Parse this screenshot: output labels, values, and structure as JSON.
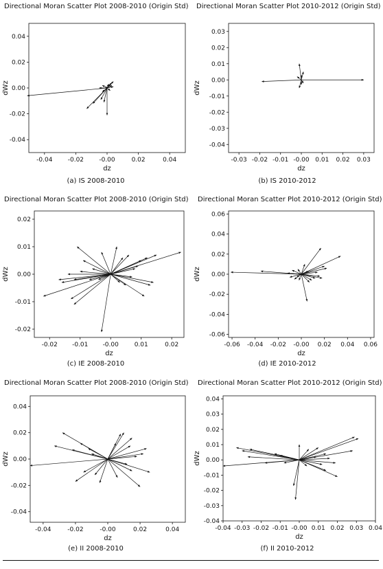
{
  "chart_data": [
    {
      "type": "scatter",
      "title": "Directional Moran Scatter Plot 2008-2010 (Origin Std)",
      "caption": "(a) IS 2008-2010",
      "xlabel": "dz",
      "ylabel": "dWz",
      "xlim": [
        -0.05,
        0.05
      ],
      "ylim": [
        -0.05,
        0.05
      ],
      "xticks": [
        "-0.04",
        "-0.02",
        "-0.00",
        "0.02",
        "0.04"
      ],
      "yticks": [
        "0.04",
        "0.02",
        "0.00",
        "-0.02",
        "-0.04"
      ],
      "xtick_values": [
        -0.04,
        -0.02,
        0,
        0.02,
        0.04
      ],
      "ytick_values": [
        0.04,
        0.02,
        0,
        -0.02,
        -0.04
      ],
      "vectors": [
        [
          -0.051,
          -0.006
        ],
        [
          -0.013,
          -0.016
        ],
        [
          -0.009,
          -0.012
        ],
        [
          -0.004,
          -0.009
        ],
        [
          -0.002,
          -0.011
        ],
        [
          0.0,
          -0.021
        ],
        [
          -0.005,
          0.0
        ],
        [
          -0.003,
          0.002
        ],
        [
          -0.003,
          -0.003
        ],
        [
          0.002,
          0.003
        ],
        [
          0.003,
          0.004
        ],
        [
          0.004,
          0.005
        ],
        [
          0.003,
          0.002
        ],
        [
          0.002,
          -0.002
        ],
        [
          -0.001,
          0.001
        ],
        [
          0.001,
          0.003
        ],
        [
          0.004,
          0.001
        ]
      ]
    },
    {
      "type": "scatter",
      "title": "Directional Moran Scatter Plot 2010-2012 (Origin Std)",
      "caption": "(b) IS 2010-2012",
      "xlabel": "dz",
      "ylabel": "dWz",
      "xlim": [
        -0.035,
        0.035
      ],
      "ylim": [
        -0.045,
        0.035
      ],
      "xticks": [
        "-0.03",
        "-0.02",
        "-0.01",
        "-0.00",
        "0.01",
        "0.02",
        "0.03"
      ],
      "yticks": [
        "0.03",
        "0.02",
        "0.01",
        "0.00",
        "-0.01",
        "-0.02",
        "-0.03",
        "-0.04"
      ],
      "xtick_values": [
        -0.03,
        -0.02,
        -0.01,
        0,
        0.01,
        0.02,
        0.03
      ],
      "ytick_values": [
        0.03,
        0.02,
        0.01,
        0,
        -0.01,
        -0.02,
        -0.03,
        -0.04
      ],
      "vectors": [
        [
          -0.019,
          -0.001
        ],
        [
          0.03,
          0.0
        ],
        [
          -0.001,
          0.01
        ],
        [
          0.001,
          0.005
        ],
        [
          -0.001,
          -0.005
        ],
        [
          0.0,
          -0.003
        ],
        [
          -0.002,
          0.002
        ],
        [
          0.001,
          -0.002
        ],
        [
          0.0,
          0.003
        ]
      ]
    },
    {
      "type": "scatter",
      "title": "Directional Moran Scatter Plot 2008-2010 (Origin Std)",
      "caption": "(c) IE 2008-2010",
      "xlabel": "dz",
      "ylabel": "dWz",
      "xlim": [
        -0.025,
        0.024
      ],
      "ylim": [
        -0.023,
        0.023
      ],
      "xticks": [
        "-0.02",
        "-0.01",
        "-0.00",
        "0.01",
        "0.02"
      ],
      "yticks": [
        "0.02",
        "0.01",
        "0.00",
        "-0.01",
        "-0.02"
      ],
      "xtick_values": [
        -0.02,
        -0.01,
        0,
        0.01,
        0.02
      ],
      "ytick_values": [
        0.02,
        0.01,
        0,
        -0.01,
        -0.02
      ],
      "vectors": [
        [
          -0.022,
          -0.008
        ],
        [
          -0.012,
          -0.011
        ],
        [
          -0.013,
          -0.009
        ],
        [
          -0.017,
          -0.002
        ],
        [
          -0.016,
          -0.003
        ],
        [
          -0.012,
          -0.002
        ],
        [
          -0.014,
          0.0
        ],
        [
          -0.01,
          0.001
        ],
        [
          -0.011,
          0.01
        ],
        [
          -0.009,
          0.005
        ],
        [
          -0.003,
          -0.021
        ],
        [
          -0.003,
          0.008
        ],
        [
          0.002,
          0.01
        ],
        [
          0.004,
          0.006
        ],
        [
          0.006,
          0.007
        ],
        [
          0.01,
          0.005
        ],
        [
          0.012,
          0.006
        ],
        [
          0.015,
          0.007
        ],
        [
          0.023,
          0.008
        ],
        [
          0.013,
          -0.004
        ],
        [
          0.014,
          -0.003
        ],
        [
          0.011,
          -0.008
        ],
        [
          0.008,
          0.002
        ],
        [
          0.007,
          -0.001
        ],
        [
          -0.006,
          0.002
        ],
        [
          -0.004,
          -0.002
        ],
        [
          0.005,
          -0.004
        ],
        [
          0.009,
          0.003
        ],
        [
          0.003,
          -0.003
        ],
        [
          -0.007,
          -0.002
        ]
      ]
    },
    {
      "type": "scatter",
      "title": "Directional Moran Scatter Plot 2010-2012 (Origin Std)",
      "caption": "(d) IE 2010-2012",
      "xlabel": "dz",
      "ylabel": "dWz",
      "xlim": [
        -0.063,
        0.063
      ],
      "ylim": [
        -0.063,
        0.063
      ],
      "xticks": [
        "-0.06",
        "-0.04",
        "-0.02",
        "-0.00",
        "0.02",
        "0.04",
        "0.06"
      ],
      "yticks": [
        "0.06",
        "0.04",
        "0.02",
        "0.00",
        "-0.02",
        "-0.04",
        "-0.06"
      ],
      "xtick_values": [
        -0.06,
        -0.04,
        -0.02,
        0,
        0.02,
        0.04,
        0.06
      ],
      "ytick_values": [
        0.06,
        0.04,
        0.02,
        0,
        -0.02,
        -0.04,
        -0.06
      ],
      "vectors": [
        [
          -0.061,
          0.002
        ],
        [
          -0.035,
          0.003
        ],
        [
          0.017,
          0.026
        ],
        [
          0.034,
          0.018
        ],
        [
          0.005,
          -0.027
        ],
        [
          0.02,
          0.008
        ],
        [
          0.018,
          -0.004
        ],
        [
          0.022,
          0.006
        ],
        [
          -0.01,
          -0.003
        ],
        [
          -0.006,
          -0.005
        ],
        [
          -0.008,
          0.004
        ],
        [
          0.009,
          -0.006
        ],
        [
          0.012,
          -0.004
        ],
        [
          0.014,
          0.002
        ],
        [
          -0.003,
          0.005
        ],
        [
          0.006,
          0.003
        ],
        [
          -0.004,
          -0.003
        ],
        [
          0.003,
          0.01
        ],
        [
          -0.012,
          0.001
        ],
        [
          0.016,
          -0.002
        ],
        [
          0.007,
          -0.008
        ],
        [
          -0.002,
          -0.006
        ]
      ]
    },
    {
      "type": "scatter",
      "title": "Directional Moran Scatter Plot 2008-2010 (Origin Std)",
      "caption": "(e) II 2008-2010",
      "xlabel": "dz",
      "ylabel": "dWz",
      "xlim": [
        -0.048,
        0.048
      ],
      "ylim": [
        -0.048,
        0.048
      ],
      "xticks": [
        "-0.04",
        "-0.02",
        "-0.00",
        "0.02",
        "0.04"
      ],
      "yticks": [
        "0.04",
        "0.02",
        "0.00",
        "-0.02",
        "-0.04"
      ],
      "xtick_values": [
        -0.04,
        -0.02,
        0,
        0.02,
        0.04
      ],
      "ytick_values": [
        0.04,
        0.02,
        0,
        -0.02,
        -0.04
      ],
      "vectors": [
        [
          -0.048,
          -0.005
        ],
        [
          -0.028,
          0.02
        ],
        [
          -0.033,
          0.01
        ],
        [
          -0.02,
          -0.017
        ],
        [
          -0.015,
          -0.01
        ],
        [
          -0.017,
          0.012
        ],
        [
          -0.022,
          0.007
        ],
        [
          -0.012,
          0.008
        ],
        [
          -0.005,
          -0.018
        ],
        [
          -0.008,
          -0.012
        ],
        [
          0.01,
          0.02
        ],
        [
          0.008,
          0.019
        ],
        [
          0.005,
          0.012
        ],
        [
          0.015,
          0.016
        ],
        [
          0.024,
          0.008
        ],
        [
          0.022,
          0.004
        ],
        [
          0.026,
          -0.01
        ],
        [
          0.02,
          -0.021
        ],
        [
          0.015,
          -0.009
        ],
        [
          0.012,
          -0.004
        ],
        [
          0.018,
          0.002
        ],
        [
          0.006,
          -0.014
        ],
        [
          0.014,
          0.01
        ],
        [
          -0.01,
          0.004
        ]
      ]
    },
    {
      "type": "scatter",
      "title": "Directional Moran Scatter Plot 2010-2012 (Origin Std)",
      "caption": "(f) II 2010-2012",
      "xlabel": "dz",
      "ylabel": "dWz",
      "xlim": [
        -0.04,
        0.04
      ],
      "ylim": [
        -0.04,
        0.042
      ],
      "xticks": [
        "-0.04",
        "-0.03",
        "-0.02",
        "-0.01",
        "-0.00",
        "0.01",
        "0.02",
        "0.03",
        "0.04"
      ],
      "yticks": [
        "0.04",
        "0.03",
        "0.02",
        "0.01",
        "0.00",
        "-0.01",
        "-0.02",
        "-0.03",
        "-0.04"
      ],
      "xtick_values": [
        -0.04,
        -0.03,
        -0.02,
        -0.01,
        0,
        0.01,
        0.02,
        0.03,
        0.04
      ],
      "ytick_values": [
        0.04,
        0.03,
        0.02,
        0.01,
        0,
        -0.01,
        -0.02,
        -0.03,
        -0.04
      ],
      "vectors": [
        [
          -0.04,
          -0.004
        ],
        [
          -0.033,
          0.008
        ],
        [
          -0.03,
          0.006
        ],
        [
          -0.026,
          0.007
        ],
        [
          -0.027,
          0.002
        ],
        [
          -0.013,
          0.004
        ],
        [
          -0.008,
          -0.002
        ],
        [
          -0.002,
          -0.026
        ],
        [
          0.0,
          0.01
        ],
        [
          0.005,
          0.007
        ],
        [
          0.01,
          0.008
        ],
        [
          0.014,
          0.004
        ],
        [
          0.016,
          0.001
        ],
        [
          0.019,
          -0.002
        ],
        [
          0.029,
          0.015
        ],
        [
          0.031,
          0.014
        ],
        [
          0.028,
          0.006
        ],
        [
          0.02,
          -0.011
        ],
        [
          0.014,
          -0.007
        ],
        [
          -0.003,
          -0.017
        ],
        [
          0.004,
          -0.004
        ],
        [
          0.009,
          0.002
        ],
        [
          -0.018,
          -0.002
        ],
        [
          0.012,
          -0.003
        ],
        [
          -0.01,
          0.003
        ]
      ]
    }
  ]
}
